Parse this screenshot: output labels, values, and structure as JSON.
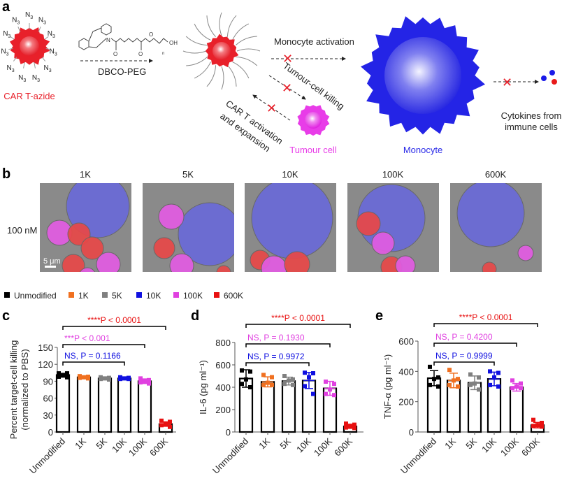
{
  "panel_labels": {
    "a": "a",
    "b": "b",
    "c": "c",
    "d": "d",
    "e": "e"
  },
  "panel_a": {
    "azide_label": "N3",
    "car_t_azide": "CAR T-azide",
    "reagent": "DBCO-PEG",
    "struct_atoms": {
      "n": "N",
      "o1": "O",
      "o2": "O",
      "o3": "O",
      "oh": "OH",
      "sub": "n"
    },
    "monocyte_activation": "Monocyte activation",
    "tumour_killing": "Tumour-cell killing",
    "car_t_activation_1": "CAR T activation",
    "car_t_activation_2": "and expansion",
    "tumour_cell": "Tumour cell",
    "monocyte": "Monocyte",
    "cytokines_1": "Cytokines from",
    "cytokines_2": "immune cells",
    "colors": {
      "car_t": "#e8202a",
      "tumour": "#e83ce8",
      "monocyte": "#2a2ae8",
      "block": "#e8202a"
    }
  },
  "panel_b": {
    "concentration": "100 nM",
    "scale_bar": "5 μm",
    "columns": [
      "1K",
      "5K",
      "10K",
      "100K",
      "600K"
    ]
  },
  "legend": [
    {
      "label": "Unmodified",
      "color": "#000000"
    },
    {
      "label": "1K",
      "color": "#f07020"
    },
    {
      "label": "5K",
      "color": "#808080"
    },
    {
      "label": "10K",
      "color": "#1010e0"
    },
    {
      "label": "100K",
      "color": "#e040e0"
    },
    {
      "label": "600K",
      "color": "#e81010"
    }
  ],
  "chart_data": [
    {
      "panel": "c",
      "type": "bar",
      "ylabel_1": "Percent target-cell killing",
      "ylabel_2": "(normalized to PBS)",
      "categories": [
        "Unmodified",
        "1K",
        "5K",
        "10K",
        "100K",
        "600K"
      ],
      "ylim": [
        0,
        150
      ],
      "yticks": [
        "0",
        "30",
        "60",
        "90",
        "120",
        "150"
      ],
      "means": [
        101,
        97,
        95,
        95,
        90,
        14
      ],
      "err": [
        3,
        2,
        2,
        2,
        4,
        4
      ],
      "points": [
        [
          104,
          104,
          100,
          98,
          97
        ],
        [
          99,
          98,
          97,
          96,
          95
        ],
        [
          97,
          96,
          95,
          94,
          93
        ],
        [
          97,
          96,
          95,
          94,
          94
        ],
        [
          95,
          92,
          90,
          88,
          86
        ],
        [
          20,
          18,
          14,
          12,
          9
        ]
      ],
      "brackets": [
        {
          "to": "600K",
          "text": "****P < 0.0001",
          "color": "#e81010"
        },
        {
          "to": "100K",
          "text": "***P < 0.001",
          "color": "#e040e0"
        },
        {
          "to": "10K",
          "text": "NS, P = 0.1166",
          "color": "#1010e0"
        }
      ]
    },
    {
      "panel": "d",
      "type": "bar",
      "ylabel_1": "IL-6 (pg ml⁻¹)",
      "categories": [
        "Unmodified",
        "1K",
        "5K",
        "10K",
        "100K",
        "600K"
      ],
      "ylim": [
        0,
        800
      ],
      "yticks": [
        "0",
        "200",
        "400",
        "600",
        "800"
      ],
      "means": [
        478,
        448,
        455,
        460,
        390,
        50
      ],
      "err": [
        78,
        45,
        35,
        72,
        62,
        18
      ],
      "points": [
        [
          550,
          540,
          470,
          430,
          400
        ],
        [
          510,
          490,
          440,
          420,
          420
        ],
        [
          500,
          470,
          460,
          430,
          420
        ],
        [
          530,
          525,
          490,
          410,
          340
        ],
        [
          450,
          430,
          380,
          340,
          330
        ],
        [
          75,
          65,
          55,
          40,
          35
        ]
      ],
      "brackets": [
        {
          "to": "600K",
          "text": "****P < 0.0001",
          "color": "#e81010"
        },
        {
          "to": "100K",
          "text": "NS, P = 0.1930",
          "color": "#e040e0"
        },
        {
          "to": "10K",
          "text": "NS, P = 0.9972",
          "color": "#1010e0"
        }
      ]
    },
    {
      "panel": "e",
      "type": "bar",
      "ylabel_1": "TNF-α (pg ml⁻¹)",
      "categories": [
        "Unmodified",
        "1K",
        "5K",
        "10K",
        "100K",
        "600K"
      ],
      "ylim": [
        0,
        600
      ],
      "yticks": [
        "0",
        "200",
        "400",
        "600"
      ],
      "means": [
        355,
        340,
        325,
        350,
        295,
        45
      ],
      "err": [
        50,
        48,
        45,
        45,
        25,
        18
      ],
      "points": [
        [
          430,
          360,
          350,
          310,
          300
        ],
        [
          410,
          350,
          340,
          310,
          300
        ],
        [
          380,
          360,
          320,
          310,
          280
        ],
        [
          400,
          390,
          360,
          310,
          300
        ],
        [
          340,
          320,
          300,
          290,
          290
        ],
        [
          80,
          60,
          45,
          40,
          35
        ]
      ],
      "brackets": [
        {
          "to": "600K",
          "text": "****P < 0.0001",
          "color": "#e81010"
        },
        {
          "to": "100K",
          "text": "NS, P = 0.4200",
          "color": "#e040e0"
        },
        {
          "to": "10K",
          "text": "NS, P = 0.9999",
          "color": "#1010e0"
        }
      ]
    }
  ]
}
